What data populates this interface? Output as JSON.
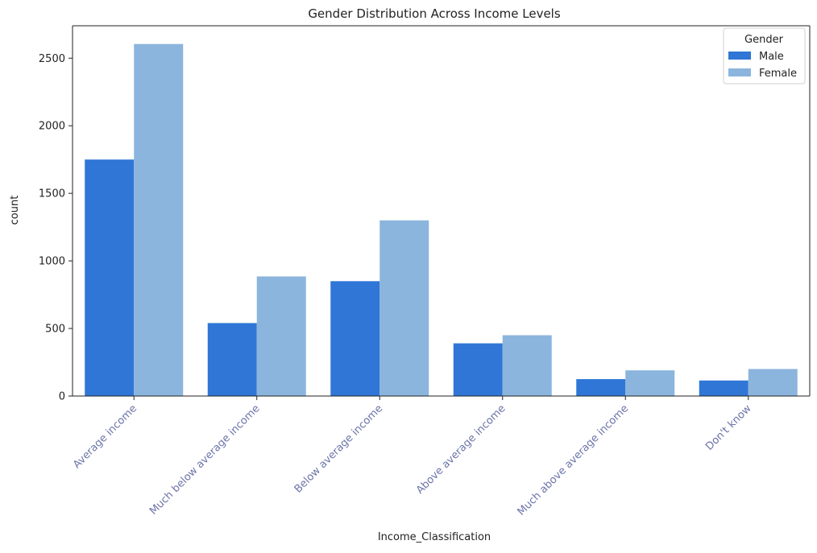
{
  "chart_data": {
    "type": "bar",
    "title": "Gender Distribution Across Income Levels",
    "xlabel": "Income_Classification",
    "ylabel": "count",
    "categories": [
      "Average income",
      "Much below average income",
      "Below average income",
      "Above average income",
      "Much above average income",
      "Don't know"
    ],
    "series": [
      {
        "name": "Male",
        "color": "#2f76d6",
        "values": [
          1750,
          540,
          850,
          390,
          125,
          115
        ]
      },
      {
        "name": "Female",
        "color": "#8bb5dd",
        "values": [
          2605,
          885,
          1300,
          450,
          190,
          200
        ]
      }
    ],
    "ylim": [
      0,
      2740
    ],
    "yticks": [
      0,
      500,
      1000,
      1500,
      2000,
      2500
    ],
    "grid": false,
    "legend": {
      "title": "Gender",
      "placement": "top-right"
    },
    "tick_label_color": "#6c74a8",
    "x_tick_rotation": 45
  }
}
